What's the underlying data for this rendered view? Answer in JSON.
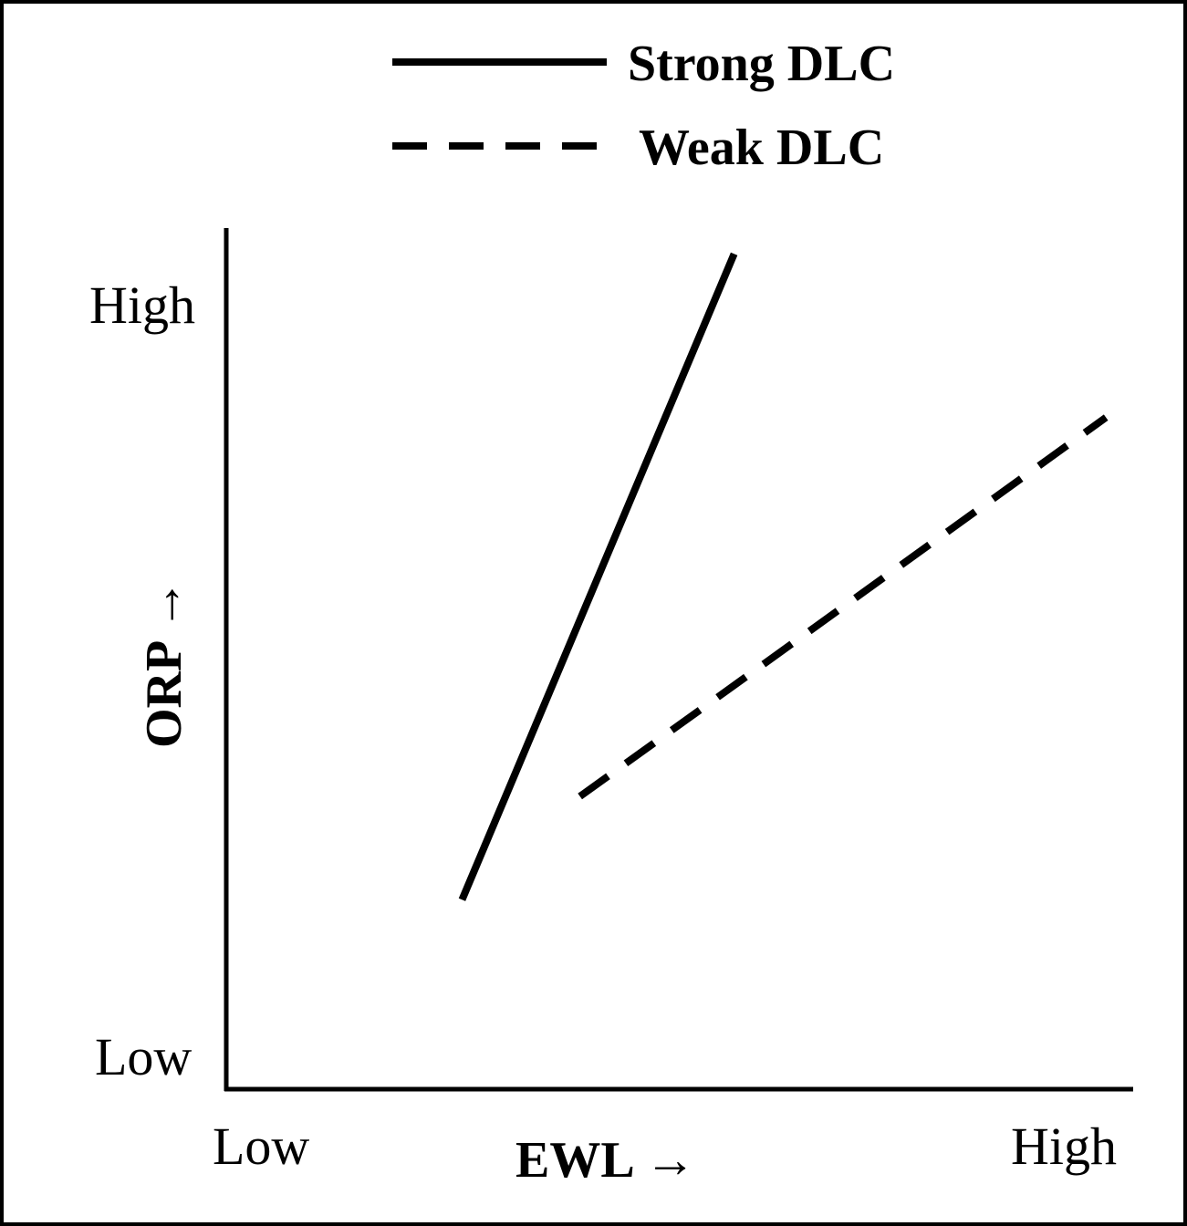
{
  "chart_data": {
    "type": "line",
    "xlabel": "EWL →",
    "ylabel": "ORP →",
    "x_ticks": [
      "Low",
      "High"
    ],
    "y_ticks": [
      "Low",
      "High"
    ],
    "xlim": [
      0,
      100
    ],
    "ylim": [
      0,
      100
    ],
    "grid": false,
    "legend": "top-center",
    "series": [
      {
        "name": "Strong DLC",
        "style": "solid",
        "color": "#000000",
        "points": [
          [
            26,
            22
          ],
          [
            56,
            97
          ]
        ]
      },
      {
        "name": "Weak DLC",
        "style": "dashed",
        "color": "#000000",
        "points": [
          [
            39,
            34
          ],
          [
            97,
            78
          ]
        ]
      }
    ]
  }
}
